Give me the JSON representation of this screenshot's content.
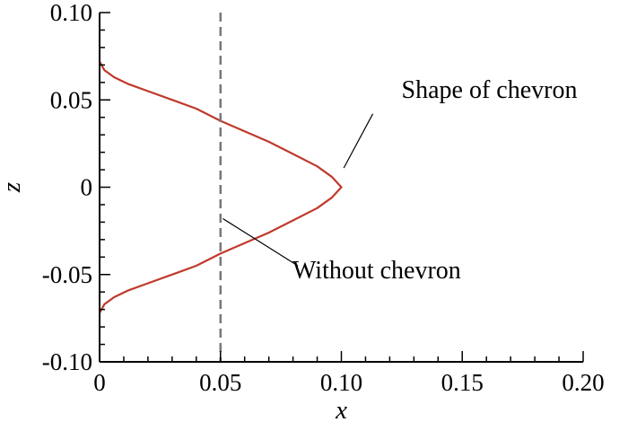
{
  "chart_data": {
    "type": "line",
    "xlabel": "x",
    "ylabel": "z",
    "xlim": [
      0,
      0.2
    ],
    "ylim": [
      -0.1,
      0.1
    ],
    "xticks": [
      0,
      0.05,
      0.1,
      0.15,
      0.2
    ],
    "xtick_labels": [
      "0",
      "0.05",
      "0.10",
      "0.15",
      "0.20"
    ],
    "yticks": [
      -0.1,
      -0.05,
      0,
      0.05,
      0.1
    ],
    "ytick_labels": [
      "-0.10",
      "-0.05",
      "0",
      "0.05",
      "0.10"
    ],
    "grid": false,
    "series": [
      {
        "name": "Shape of chevron",
        "style": "solid",
        "color": "#c0392b",
        "points": [
          [
            0.0,
            0.072
          ],
          [
            0.002,
            0.067
          ],
          [
            0.006,
            0.063
          ],
          [
            0.012,
            0.059
          ],
          [
            0.02,
            0.055
          ],
          [
            0.03,
            0.05
          ],
          [
            0.04,
            0.045
          ],
          [
            0.05,
            0.038
          ],
          [
            0.06,
            0.032
          ],
          [
            0.07,
            0.026
          ],
          [
            0.08,
            0.019
          ],
          [
            0.09,
            0.012
          ],
          [
            0.096,
            0.006
          ],
          [
            0.1,
            0.0
          ],
          [
            0.096,
            -0.006
          ],
          [
            0.09,
            -0.012
          ],
          [
            0.08,
            -0.019
          ],
          [
            0.07,
            -0.026
          ],
          [
            0.06,
            -0.032
          ],
          [
            0.05,
            -0.038
          ],
          [
            0.04,
            -0.045
          ],
          [
            0.03,
            -0.05
          ],
          [
            0.02,
            -0.055
          ],
          [
            0.012,
            -0.059
          ],
          [
            0.006,
            -0.063
          ],
          [
            0.002,
            -0.067
          ],
          [
            0.0,
            -0.072
          ]
        ]
      },
      {
        "name": "Without chevron",
        "style": "dashed",
        "color": "#777777",
        "points": [
          [
            0.05,
            0.1
          ],
          [
            0.05,
            -0.1
          ]
        ]
      }
    ],
    "annotations": [
      {
        "text": "Shape of chevron",
        "target": [
          0.101,
          0.011
        ],
        "label_at": [
          0.113,
          0.042
        ]
      },
      {
        "text": "Without chevron",
        "target": [
          0.051,
          -0.018
        ],
        "label_at": [
          0.082,
          -0.045
        ]
      }
    ]
  }
}
